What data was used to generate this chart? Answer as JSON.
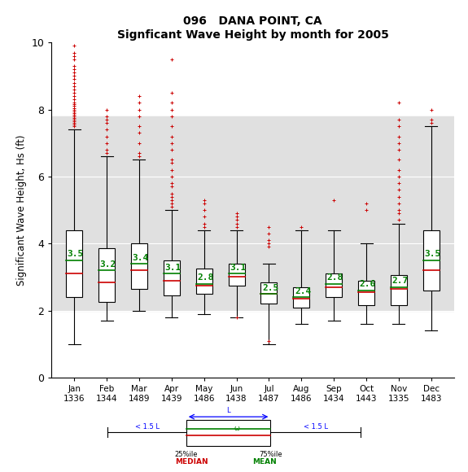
{
  "title1": "096   DANA POINT, CA",
  "title2": "Signficant Wave Height by month for 2005",
  "ylabel": "Significant Wave Height, Hs (ft)",
  "months": [
    "Jan",
    "Feb",
    "Mar",
    "Apr",
    "May",
    "Jun",
    "Jul",
    "Aug",
    "Sep",
    "Oct",
    "Nov",
    "Dec"
  ],
  "counts": [
    1336,
    1344,
    1489,
    1439,
    1486,
    1438,
    1487,
    1486,
    1434,
    1443,
    1335,
    1483
  ],
  "means": [
    3.5,
    3.2,
    3.4,
    3.1,
    2.8,
    3.1,
    2.5,
    2.4,
    2.8,
    2.6,
    2.7,
    3.5
  ],
  "medians": [
    3.1,
    2.85,
    3.2,
    2.9,
    2.75,
    3.0,
    2.5,
    2.35,
    2.7,
    2.55,
    2.65,
    3.2
  ],
  "q1": [
    2.4,
    2.25,
    2.65,
    2.45,
    2.5,
    2.75,
    2.2,
    2.1,
    2.4,
    2.15,
    2.15,
    2.6
  ],
  "q3": [
    4.4,
    3.85,
    4.0,
    3.5,
    3.25,
    3.4,
    2.85,
    2.7,
    3.1,
    2.9,
    3.05,
    4.4
  ],
  "wlo": [
    1.0,
    1.7,
    2.0,
    1.8,
    1.9,
    1.8,
    1.0,
    1.6,
    1.7,
    1.6,
    1.6,
    1.4
  ],
  "whi": [
    7.4,
    6.6,
    6.5,
    5.0,
    4.4,
    4.4,
    3.4,
    4.4,
    4.4,
    4.0,
    4.6,
    7.5
  ],
  "fliers_hi": [
    [
      7.5,
      7.55,
      7.6,
      7.65,
      7.7,
      7.75,
      7.8,
      7.85,
      7.9,
      7.95,
      8.0,
      8.05,
      8.1,
      8.15,
      8.2,
      8.3,
      8.4,
      8.5,
      8.6,
      8.7,
      8.8,
      8.9,
      9.0,
      9.1,
      9.2,
      9.3,
      9.5,
      9.6,
      9.7,
      9.9
    ],
    [
      6.7,
      6.8,
      7.0,
      7.2,
      7.4,
      7.6,
      7.7,
      7.8,
      8.0
    ],
    [
      6.6,
      6.7,
      7.0,
      7.3,
      7.5,
      7.8,
      8.0,
      8.2,
      8.4
    ],
    [
      5.1,
      5.2,
      5.3,
      5.4,
      5.5,
      5.7,
      5.8,
      6.0,
      6.2,
      6.4,
      6.5,
      6.8,
      7.0,
      7.2,
      7.5,
      7.8,
      8.0,
      8.2,
      8.5,
      9.5
    ],
    [
      4.5,
      4.6,
      4.8,
      5.0,
      5.2,
      5.3
    ],
    [
      4.5,
      4.6,
      4.7,
      4.8,
      4.9
    ],
    [
      3.9,
      4.0,
      4.1,
      4.3,
      4.5
    ],
    [
      4.5
    ],
    [
      5.3
    ],
    [
      5.0,
      5.2
    ],
    [
      4.7,
      4.9,
      5.0,
      5.2,
      5.4,
      5.6,
      5.8,
      6.0,
      6.2,
      6.5,
      6.8,
      7.0,
      7.2,
      7.5,
      7.7,
      8.2
    ],
    [
      7.6,
      7.7,
      8.0
    ]
  ],
  "fliers_lo": [
    [],
    [],
    [],
    [],
    [],
    [
      1.8
    ],
    [
      1.1
    ],
    [],
    [],
    [],
    [],
    []
  ],
  "ylim": [
    0,
    10
  ],
  "band_lo": 2.0,
  "band_hi": 7.8,
  "box_color": "white",
  "median_color": "#cc0000",
  "mean_color": "#008000",
  "flier_color": "#cc0000",
  "mean_fontsize": 8,
  "title_fontsize": 10
}
